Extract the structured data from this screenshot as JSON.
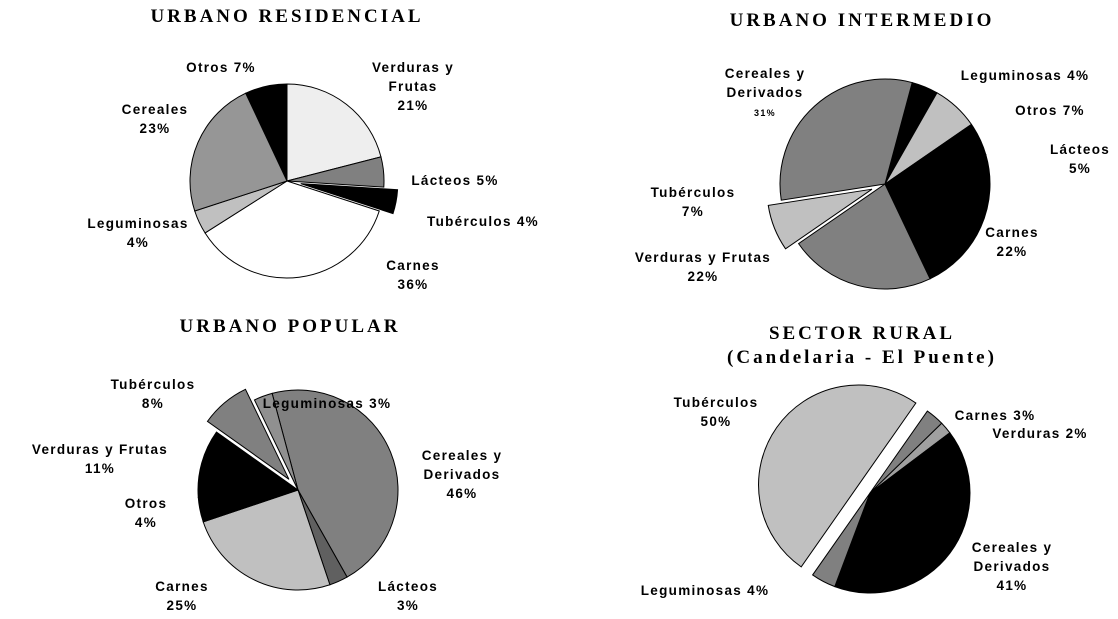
{
  "chart_data": [
    {
      "type": "pie",
      "title": "URBANO RESIDENCIAL",
      "categories": [
        "Otros",
        "Verduras y Frutas",
        "Lácteos",
        "Tubérculos",
        "Carnes",
        "Leguminosas",
        "Cereales"
      ],
      "values": [
        7,
        21,
        5,
        4,
        36,
        4,
        23
      ],
      "value_labels": [
        "7%",
        "21%",
        "5%",
        "4%",
        "36%",
        "4%",
        "23%"
      ],
      "colors": [
        "#000000",
        "#eeeeee",
        "#808080",
        "#000000",
        "#ffffff",
        "#c0c0c0",
        "#969696"
      ],
      "explode": [
        false,
        false,
        false,
        true,
        false,
        false,
        false
      ]
    },
    {
      "type": "pie",
      "title": "URBANO INTERMEDIO",
      "categories": [
        "Leguminosas",
        "Otros",
        "Lácteos",
        "Carnes",
        "Verduras y Frutas",
        "Tubérculos",
        "Cereales y Derivados"
      ],
      "values": [
        4,
        7,
        5,
        22,
        22,
        7,
        31
      ],
      "value_labels": [
        "4%",
        "7%",
        "5%",
        "22%",
        "22%",
        "7%",
        "31%"
      ],
      "colors": [
        "#000000",
        "#c0c0c0",
        "#000000",
        "#000000",
        "#808080",
        "#c0c0c0",
        "#808080"
      ],
      "explode": [
        false,
        false,
        false,
        false,
        false,
        true,
        false
      ]
    },
    {
      "type": "pie",
      "title": "URBANO POPULAR",
      "categories": [
        "Cereales y Derivados",
        "Lácteos",
        "Carnes",
        "Otros",
        "Verduras y Frutas",
        "Tubérculos",
        "Leguminosas"
      ],
      "values": [
        46,
        3,
        25,
        4,
        11,
        8,
        3
      ],
      "value_labels": [
        "46%",
        "3%",
        "25%",
        "4%",
        "11%",
        "8%",
        "3%"
      ],
      "colors": [
        "#808080",
        "#606060",
        "#c0c0c0",
        "#000000",
        "#000000",
        "#808080",
        "#909090"
      ],
      "explode": [
        false,
        false,
        false,
        false,
        false,
        true,
        false
      ]
    },
    {
      "type": "pie",
      "title": "SECTOR RURAL",
      "subtitle": "(Candelaria - El Puente)",
      "categories": [
        "Carnes",
        "Verduras",
        "Cereales y Derivados",
        "Leguminosas",
        "Tubérculos"
      ],
      "values": [
        3,
        2,
        41,
        4,
        50
      ],
      "value_labels": [
        "3%",
        "2%",
        "41%",
        "4%",
        "50%"
      ],
      "colors": [
        "#808080",
        "#a0a0a0",
        "#000000",
        "#808080",
        "#c0c0c0"
      ],
      "explode": [
        false,
        false,
        false,
        false,
        true
      ]
    }
  ]
}
